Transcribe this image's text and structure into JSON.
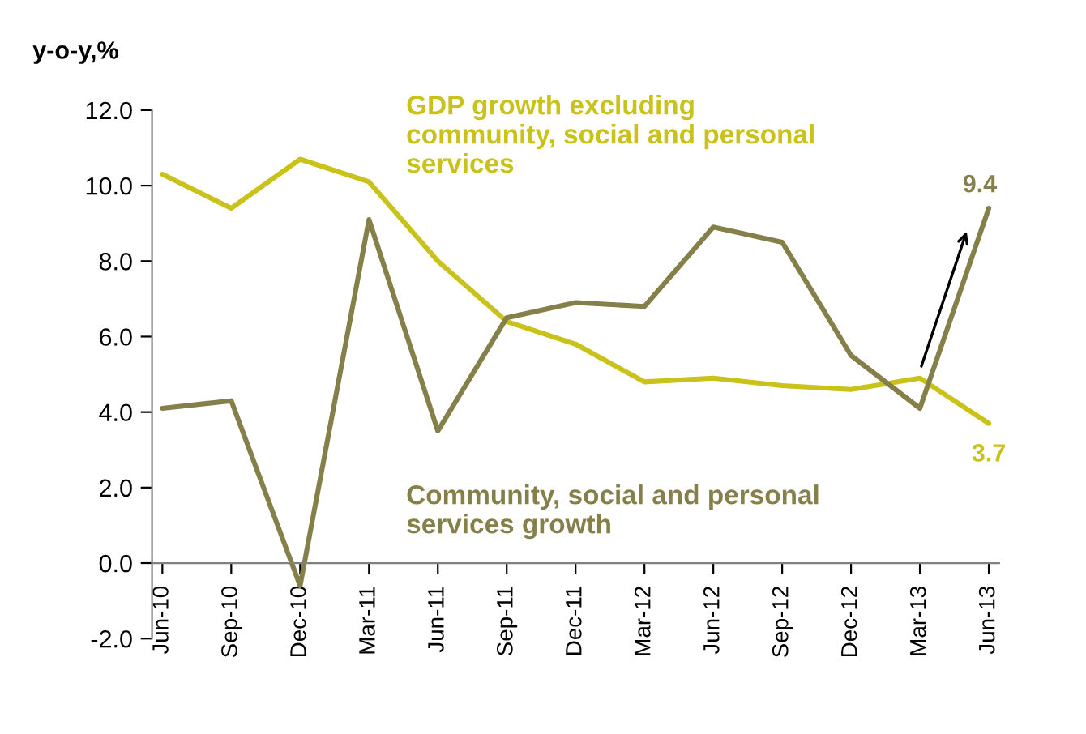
{
  "chart_data": {
    "type": "line",
    "ylabel": "y-o-y,%",
    "categories": [
      "Jun-10",
      "Sep-10",
      "Dec-10",
      "Mar-11",
      "Jun-11",
      "Sep-11",
      "Dec-11",
      "Mar-12",
      "Jun-12",
      "Sep-12",
      "Dec-12",
      "Mar-13",
      "Jun-13"
    ],
    "series": [
      {
        "name": "GDP growth excluding community, social and personal services",
        "color": "#c9c21a",
        "values": [
          10.3,
          9.4,
          10.7,
          10.1,
          8.0,
          6.4,
          5.8,
          4.8,
          4.9,
          4.7,
          4.6,
          4.9,
          3.7
        ],
        "value_labels": [
          null,
          null,
          null,
          null,
          null,
          null,
          null,
          null,
          null,
          null,
          null,
          null,
          "3.7"
        ]
      },
      {
        "name": "Community, social and personal services growth",
        "color": "#85804a",
        "values": [
          4.1,
          4.3,
          -0.6,
          9.1,
          3.5,
          6.5,
          6.9,
          6.8,
          8.9,
          8.5,
          5.5,
          4.1,
          9.4
        ],
        "value_labels": [
          null,
          null,
          null,
          null,
          null,
          null,
          null,
          null,
          null,
          null,
          null,
          null,
          "9.4"
        ]
      }
    ],
    "ylim": [
      -2,
      12
    ],
    "yticks": [
      {
        "value": -2,
        "label": "-2.0"
      },
      {
        "value": 0,
        "label": "0.0"
      },
      {
        "value": 2,
        "label": "2.0"
      },
      {
        "value": 4,
        "label": "4.0"
      },
      {
        "value": 6,
        "label": "6.0"
      },
      {
        "value": 8,
        "label": "8.0"
      },
      {
        "value": 10,
        "label": "10.0"
      },
      {
        "value": 12,
        "label": "12.0"
      }
    ],
    "grid": false,
    "legend": false,
    "marker": "none",
    "line_style": "solid"
  }
}
